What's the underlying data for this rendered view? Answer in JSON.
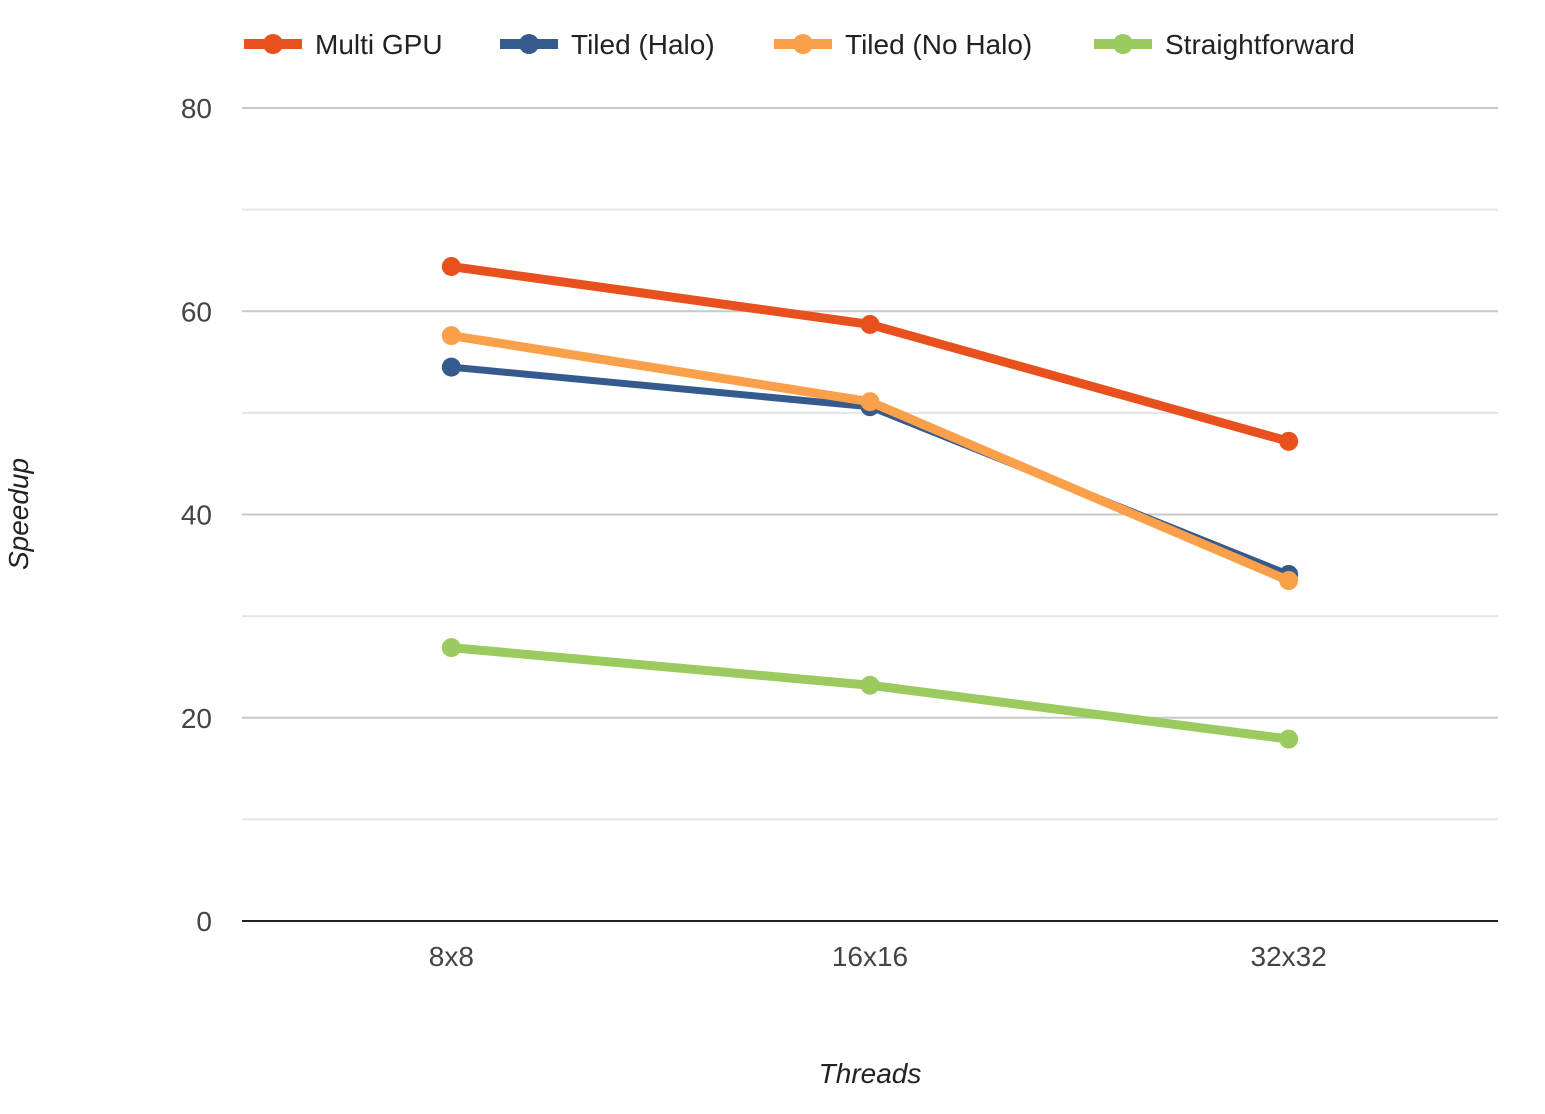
{
  "chart_data": {
    "type": "line",
    "categories": [
      "8x8",
      "16x16",
      "32x32"
    ],
    "series": [
      {
        "name": "Multi GPU",
        "color": "#e8501e",
        "values": [
          64.4,
          58.7,
          47.2
        ]
      },
      {
        "name": "Tiled (Halo)",
        "color": "#355a8e",
        "values": [
          54.5,
          50.6,
          34.1
        ]
      },
      {
        "name": "Tiled (No Halo)",
        "color": "#fba04a",
        "values": [
          57.6,
          51.1,
          33.5
        ]
      },
      {
        "name": "Straightforward",
        "color": "#9bcb5f",
        "values": [
          26.9,
          23.2,
          17.9
        ]
      }
    ],
    "xlabel": "Threads",
    "ylabel": "Speedup",
    "ylim": [
      0,
      80
    ],
    "yticks": [
      "0",
      "20",
      "40",
      "60",
      "80"
    ],
    "grid": true,
    "legend_position": "top"
  }
}
